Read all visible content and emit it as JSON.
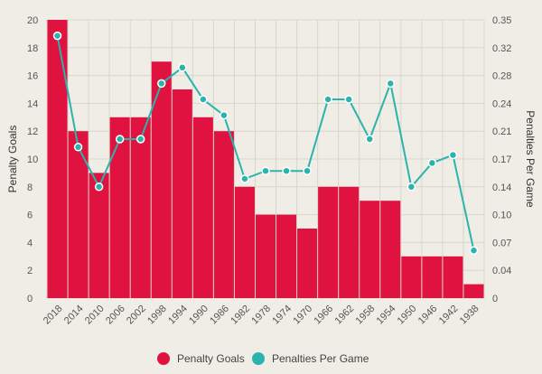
{
  "chart_data": {
    "type": "bar",
    "categories": [
      "2018",
      "2014",
      "2010",
      "2006",
      "2002",
      "1998",
      "1994",
      "1990",
      "1986",
      "1982",
      "1978",
      "1974",
      "1970",
      "1966",
      "1962",
      "1958",
      "1954",
      "1950",
      "1946",
      "1942",
      "1938"
    ],
    "series": [
      {
        "name": "Penalty Goals",
        "type": "bar",
        "axis": "left",
        "color": "#e0123f",
        "values": [
          20,
          12,
          9,
          13,
          13,
          17,
          15,
          13,
          12,
          8,
          6,
          6,
          5,
          8,
          8,
          7,
          7,
          3,
          3,
          3,
          1
        ]
      },
      {
        "name": "Penalties Per Game",
        "type": "line",
        "axis": "right",
        "color": "#2bb3ad",
        "values": [
          0.33,
          0.19,
          0.14,
          0.2,
          0.2,
          0.27,
          0.29,
          0.25,
          0.23,
          0.15,
          0.16,
          0.16,
          0.16,
          0.25,
          0.25,
          0.2,
          0.27,
          0.14,
          0.17,
          0.18,
          0.06
        ]
      }
    ],
    "ylabel": "Penalty Goals",
    "y2label": "Penalties Per Game",
    "ylim": [
      0,
      20
    ],
    "y2lim": [
      0,
      0.35
    ],
    "yticks": [
      "0",
      "2",
      "4",
      "6",
      "8",
      "10",
      "12",
      "14",
      "16",
      "18",
      "20"
    ],
    "y2ticks": [
      "0",
      "0.04",
      "0.07",
      "0.10",
      "0.14",
      "0.17",
      "0.21",
      "0.24",
      "0.28",
      "0.32",
      "0.35"
    ],
    "grid": true,
    "legend_position": "bottom-center"
  }
}
